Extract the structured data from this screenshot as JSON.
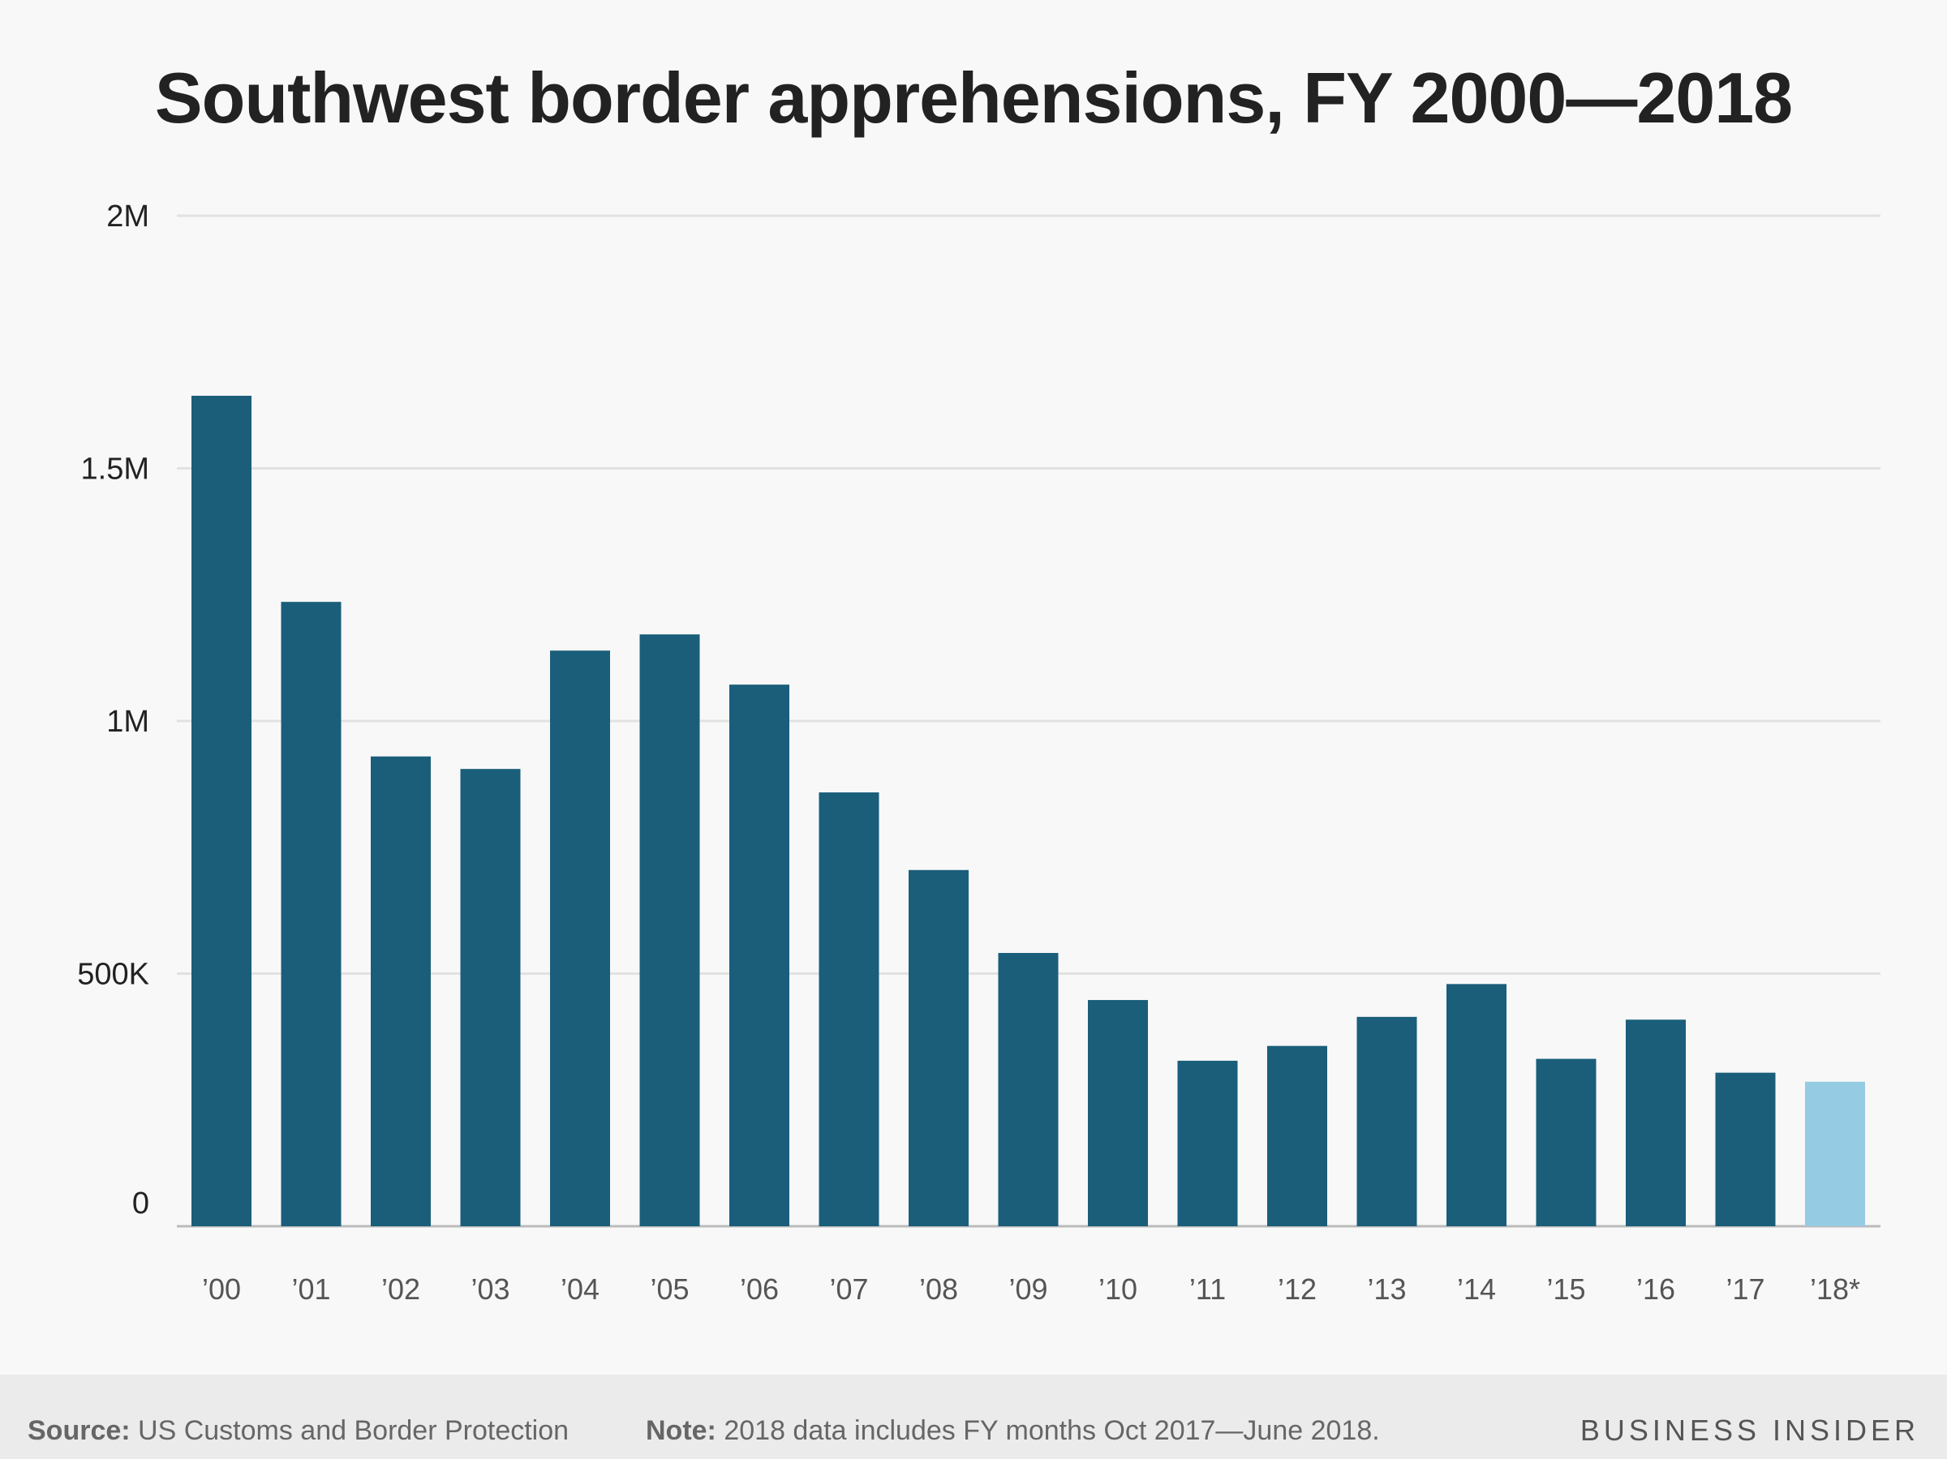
{
  "chart_data": {
    "type": "bar",
    "title": "Southwest border apprehensions, FY 2000—2018",
    "categories": [
      "’00",
      "’01",
      "’02",
      "’03",
      "’04",
      "’05",
      "’06",
      "’07",
      "’08",
      "’09",
      "’10",
      "’11",
      "’12",
      "’13",
      "’14",
      "’15",
      "’16",
      "’17",
      "’18*"
    ],
    "values": [
      1643679,
      1235718,
      929809,
      905065,
      1139282,
      1171396,
      1071972,
      858638,
      705005,
      540865,
      447731,
      327577,
      356873,
      414397,
      479371,
      331333,
      408870,
      303916,
      286000
    ],
    "highlight_index": 18,
    "ylim": [
      0,
      2000000
    ],
    "yticks": [
      {
        "value": 0,
        "label": "0"
      },
      {
        "value": 500000,
        "label": "500K"
      },
      {
        "value": 1000000,
        "label": "1M"
      },
      {
        "value": 1500000,
        "label": "1.5M"
      },
      {
        "value": 2000000,
        "label": "2M"
      }
    ],
    "grid": true,
    "xlabel": "",
    "ylabel": ""
  },
  "colors": {
    "bar": "#1a5e7a",
    "bar_highlight": "#95cbe3",
    "grid": "#e2e2e2",
    "axis": "#bbbbbb"
  },
  "footer": {
    "source_label": "Source:",
    "source_text": " US Customs and Border Protection",
    "note_label": "Note:",
    "note_text": " 2018 data includes FY months Oct 2017—June 2018.",
    "brand": "BUSINESS INSIDER"
  }
}
